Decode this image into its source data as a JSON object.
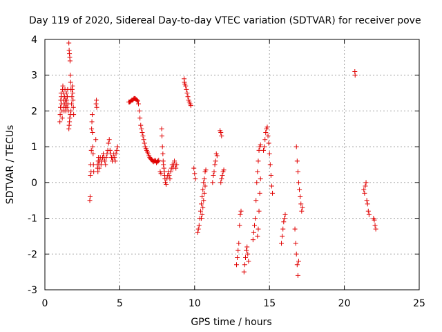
{
  "chart_data": {
    "type": "scatter",
    "title": "Day 119 of 2020, Sidereal Day-to-day VTEC variation (SDTVAR) for receiver pove",
    "xlabel": "GPS time / hours",
    "ylabel": "SDTVAR / TECUs",
    "xlim": [
      0,
      25
    ],
    "ylim": [
      -3,
      4
    ],
    "xticks": [
      0,
      5,
      10,
      15,
      20,
      25
    ],
    "yticks": [
      -3,
      -2,
      -1,
      0,
      1,
      2,
      3,
      4
    ],
    "xtick_labels": [
      "0",
      "5",
      "10",
      "15",
      "20",
      "25"
    ],
    "ytick_labels": [
      "-3",
      "-2",
      "-1",
      "0",
      "1",
      "2",
      "3",
      "4"
    ],
    "grid": true,
    "marker": "+",
    "color": "#e00000",
    "series": [
      {
        "name": "SDTVAR",
        "points": [
          [
            1.0,
            1.7
          ],
          [
            1.02,
            1.9
          ],
          [
            1.04,
            2.1
          ],
          [
            1.06,
            2.3
          ],
          [
            1.08,
            2.5
          ],
          [
            1.1,
            2.4
          ],
          [
            1.12,
            2.2
          ],
          [
            1.14,
            2.0
          ],
          [
            1.16,
            1.8
          ],
          [
            1.18,
            2.6
          ],
          [
            1.2,
            2.7
          ],
          [
            1.22,
            2.5
          ],
          [
            1.24,
            2.3
          ],
          [
            1.26,
            2.1
          ],
          [
            1.28,
            2.0
          ],
          [
            1.3,
            2.2
          ],
          [
            1.32,
            2.4
          ],
          [
            1.34,
            2.6
          ],
          [
            1.36,
            2.3
          ],
          [
            1.38,
            2.1
          ],
          [
            1.4,
            2.0
          ],
          [
            1.42,
            2.2
          ],
          [
            1.44,
            2.5
          ],
          [
            1.46,
            2.3
          ],
          [
            1.48,
            2.1
          ],
          [
            1.5,
            2.4
          ],
          [
            1.52,
            2.6
          ],
          [
            1.54,
            2.2
          ],
          [
            1.56,
            2.0
          ],
          [
            1.6,
            3.9
          ],
          [
            1.62,
            3.7
          ],
          [
            1.64,
            3.6
          ],
          [
            1.66,
            3.5
          ],
          [
            1.68,
            3.4
          ],
          [
            1.7,
            3.0
          ],
          [
            1.72,
            2.8
          ],
          [
            1.74,
            2.6
          ],
          [
            1.6,
            1.5
          ],
          [
            1.62,
            1.6
          ],
          [
            1.64,
            1.7
          ],
          [
            1.66,
            1.8
          ],
          [
            1.7,
            1.9
          ],
          [
            1.74,
            2.0
          ],
          [
            1.78,
            2.2
          ],
          [
            1.8,
            2.4
          ],
          [
            1.82,
            2.6
          ],
          [
            1.84,
            2.7
          ],
          [
            1.86,
            2.5
          ],
          [
            1.88,
            2.3
          ],
          [
            1.9,
            2.1
          ],
          [
            1.92,
            1.9
          ],
          [
            3.0,
            -0.5
          ],
          [
            3.02,
            -0.4
          ],
          [
            3.04,
            0.2
          ],
          [
            3.06,
            0.5
          ],
          [
            3.08,
            0.3
          ],
          [
            3.1,
            0.9
          ],
          [
            3.12,
            1.5
          ],
          [
            3.14,
            1.7
          ],
          [
            3.16,
            1.9
          ],
          [
            3.18,
            1.4
          ],
          [
            3.2,
            1.0
          ],
          [
            3.22,
            0.8
          ],
          [
            3.24,
            0.5
          ],
          [
            3.26,
            0.3
          ],
          [
            3.4,
            1.2
          ],
          [
            3.42,
            2.2
          ],
          [
            3.44,
            2.3
          ],
          [
            3.46,
            2.1
          ],
          [
            3.5,
            0.5
          ],
          [
            3.52,
            0.4
          ],
          [
            3.54,
            0.3
          ],
          [
            3.56,
            0.6
          ],
          [
            3.58,
            0.7
          ],
          [
            3.6,
            0.5
          ],
          [
            3.62,
            0.4
          ],
          [
            3.65,
            0.6
          ],
          [
            3.7,
            0.7
          ],
          [
            3.75,
            0.5
          ],
          [
            3.8,
            0.6
          ],
          [
            3.85,
            0.7
          ],
          [
            3.9,
            0.8
          ],
          [
            3.95,
            0.7
          ],
          [
            4.0,
            0.6
          ],
          [
            4.05,
            0.5
          ],
          [
            4.1,
            0.7
          ],
          [
            4.15,
            0.8
          ],
          [
            4.2,
            0.9
          ],
          [
            4.25,
            1.1
          ],
          [
            4.3,
            1.2
          ],
          [
            4.35,
            0.9
          ],
          [
            4.4,
            0.8
          ],
          [
            4.45,
            0.7
          ],
          [
            4.5,
            0.6
          ],
          [
            4.55,
            0.7
          ],
          [
            4.6,
            0.8
          ],
          [
            4.65,
            0.7
          ],
          [
            4.7,
            0.6
          ],
          [
            4.75,
            0.8
          ],
          [
            4.8,
            0.9
          ],
          [
            4.85,
            1.0
          ],
          [
            5.6,
            2.25
          ],
          [
            5.65,
            2.25
          ],
          [
            5.7,
            2.26
          ],
          [
            5.75,
            2.28
          ],
          [
            5.8,
            2.3
          ],
          [
            5.85,
            2.3
          ],
          [
            5.9,
            2.32
          ],
          [
            5.95,
            2.35
          ],
          [
            6.0,
            2.35
          ],
          [
            6.05,
            2.34
          ],
          [
            6.1,
            2.32
          ],
          [
            6.15,
            2.3
          ],
          [
            6.2,
            2.28
          ],
          [
            6.25,
            2.2
          ],
          [
            6.3,
            2.0
          ],
          [
            6.35,
            1.8
          ],
          [
            6.4,
            1.6
          ],
          [
            6.45,
            1.5
          ],
          [
            6.5,
            1.4
          ],
          [
            6.55,
            1.3
          ],
          [
            6.6,
            1.2
          ],
          [
            6.65,
            1.1
          ],
          [
            6.7,
            1.0
          ],
          [
            6.75,
            0.95
          ],
          [
            6.8,
            0.9
          ],
          [
            6.85,
            0.85
          ],
          [
            6.9,
            0.8
          ],
          [
            6.95,
            0.75
          ],
          [
            7.0,
            0.7
          ],
          [
            7.05,
            0.67
          ],
          [
            7.1,
            0.65
          ],
          [
            7.15,
            0.63
          ],
          [
            7.2,
            0.6
          ],
          [
            7.25,
            0.58
          ],
          [
            7.3,
            0.6
          ],
          [
            7.35,
            0.62
          ],
          [
            7.4,
            0.6
          ],
          [
            7.45,
            0.55
          ],
          [
            7.5,
            0.6
          ],
          [
            7.55,
            0.58
          ],
          [
            7.6,
            0.62
          ],
          [
            7.7,
            0.3
          ],
          [
            7.75,
            0.25
          ],
          [
            7.8,
            1.5
          ],
          [
            7.82,
            1.3
          ],
          [
            7.85,
            1.0
          ],
          [
            7.88,
            0.8
          ],
          [
            7.9,
            0.6
          ],
          [
            7.92,
            0.5
          ],
          [
            7.95,
            0.4
          ],
          [
            7.98,
            0.3
          ],
          [
            8.0,
            0.2
          ],
          [
            8.02,
            0.1
          ],
          [
            8.05,
            0.0
          ],
          [
            8.1,
            -0.05
          ],
          [
            8.15,
            0.1
          ],
          [
            8.2,
            0.2
          ],
          [
            8.25,
            0.3
          ],
          [
            8.3,
            0.2
          ],
          [
            8.35,
            0.1
          ],
          [
            8.4,
            0.3
          ],
          [
            8.45,
            0.4
          ],
          [
            8.5,
            0.5
          ],
          [
            8.55,
            0.4
          ],
          [
            8.6,
            0.5
          ],
          [
            8.65,
            0.6
          ],
          [
            8.7,
            0.5
          ],
          [
            8.75,
            0.4
          ],
          [
            8.8,
            0.5
          ],
          [
            9.3,
            2.9
          ],
          [
            9.32,
            2.8
          ],
          [
            9.35,
            2.75
          ],
          [
            9.4,
            2.7
          ],
          [
            9.45,
            2.6
          ],
          [
            9.5,
            2.5
          ],
          [
            9.55,
            2.4
          ],
          [
            9.6,
            2.3
          ],
          [
            9.65,
            2.25
          ],
          [
            9.7,
            2.2
          ],
          [
            9.75,
            2.15
          ],
          [
            9.95,
            0.4
          ],
          [
            10.0,
            0.25
          ],
          [
            10.05,
            0.1
          ],
          [
            10.2,
            -1.4
          ],
          [
            10.25,
            -1.3
          ],
          [
            10.3,
            -1.2
          ],
          [
            10.35,
            -1.0
          ],
          [
            10.4,
            -0.8
          ],
          [
            10.45,
            -0.6
          ],
          [
            10.5,
            -0.4
          ],
          [
            10.55,
            -0.2
          ],
          [
            10.6,
            0.0
          ],
          [
            10.65,
            0.1
          ],
          [
            10.7,
            0.3
          ],
          [
            10.75,
            0.35
          ],
          [
            10.45,
            -1.0
          ],
          [
            10.5,
            -0.9
          ],
          [
            10.55,
            -0.7
          ],
          [
            10.6,
            -0.5
          ],
          [
            10.65,
            -0.3
          ],
          [
            10.7,
            -0.1
          ],
          [
            11.2,
            0.0
          ],
          [
            11.25,
            0.2
          ],
          [
            11.3,
            0.3
          ],
          [
            11.35,
            0.5
          ],
          [
            11.4,
            0.6
          ],
          [
            11.45,
            0.8
          ],
          [
            11.5,
            0.75
          ],
          [
            11.7,
            1.45
          ],
          [
            11.75,
            1.4
          ],
          [
            11.8,
            1.3
          ],
          [
            11.75,
            0.0
          ],
          [
            11.8,
            0.1
          ],
          [
            11.85,
            0.2
          ],
          [
            11.9,
            0.3
          ],
          [
            11.95,
            0.35
          ],
          [
            12.8,
            -2.3
          ],
          [
            12.85,
            -2.1
          ],
          [
            12.9,
            -1.9
          ],
          [
            12.95,
            -1.7
          ],
          [
            13.0,
            -1.2
          ],
          [
            13.05,
            -0.9
          ],
          [
            13.1,
            -0.8
          ],
          [
            13.3,
            -2.5
          ],
          [
            13.35,
            -2.3
          ],
          [
            13.4,
            -2.1
          ],
          [
            13.45,
            -1.9
          ],
          [
            13.5,
            -1.8
          ],
          [
            13.55,
            -2.0
          ],
          [
            13.6,
            -2.2
          ],
          [
            13.9,
            -1.6
          ],
          [
            13.95,
            -1.4
          ],
          [
            14.0,
            -1.2
          ],
          [
            14.05,
            -1.0
          ],
          [
            14.1,
            -0.5
          ],
          [
            14.15,
            0.0
          ],
          [
            14.2,
            0.3
          ],
          [
            14.25,
            0.6
          ],
          [
            14.3,
            0.9
          ],
          [
            14.35,
            1.0
          ],
          [
            14.4,
            1.05
          ],
          [
            14.2,
            -1.5
          ],
          [
            14.25,
            -1.3
          ],
          [
            14.3,
            -0.8
          ],
          [
            14.35,
            -0.3
          ],
          [
            14.4,
            0.1
          ],
          [
            14.6,
            0.9
          ],
          [
            14.65,
            1.0
          ],
          [
            14.7,
            1.2
          ],
          [
            14.75,
            1.4
          ],
          [
            14.8,
            1.5
          ],
          [
            14.85,
            1.55
          ],
          [
            14.9,
            1.3
          ],
          [
            14.95,
            1.1
          ],
          [
            15.0,
            0.8
          ],
          [
            15.05,
            0.5
          ],
          [
            15.1,
            0.2
          ],
          [
            15.15,
            -0.1
          ],
          [
            15.2,
            -0.3
          ],
          [
            15.8,
            -1.7
          ],
          [
            15.85,
            -1.5
          ],
          [
            15.9,
            -1.3
          ],
          [
            15.95,
            -1.1
          ],
          [
            16.0,
            -1.0
          ],
          [
            16.05,
            -0.9
          ],
          [
            16.7,
            -1.3
          ],
          [
            16.75,
            -1.7
          ],
          [
            16.8,
            -2.0
          ],
          [
            16.85,
            -2.3
          ],
          [
            16.9,
            -2.6
          ],
          [
            16.95,
            -2.2
          ],
          [
            16.8,
            1.0
          ],
          [
            16.85,
            0.6
          ],
          [
            16.9,
            0.3
          ],
          [
            16.95,
            0.0
          ],
          [
            17.0,
            -0.2
          ],
          [
            17.05,
            -0.4
          ],
          [
            17.1,
            -0.6
          ],
          [
            17.15,
            -0.8
          ],
          [
            17.2,
            -0.7
          ],
          [
            20.7,
            3.1
          ],
          [
            20.72,
            3.0
          ],
          [
            21.3,
            -0.2
          ],
          [
            21.35,
            -0.3
          ],
          [
            21.4,
            -0.1
          ],
          [
            21.45,
            0.0
          ],
          [
            21.5,
            -0.5
          ],
          [
            21.55,
            -0.6
          ],
          [
            21.6,
            -0.8
          ],
          [
            21.65,
            -0.9
          ],
          [
            21.95,
            -1.0
          ],
          [
            22.0,
            -1.05
          ],
          [
            22.05,
            -1.2
          ],
          [
            22.1,
            -1.3
          ]
        ]
      }
    ]
  }
}
